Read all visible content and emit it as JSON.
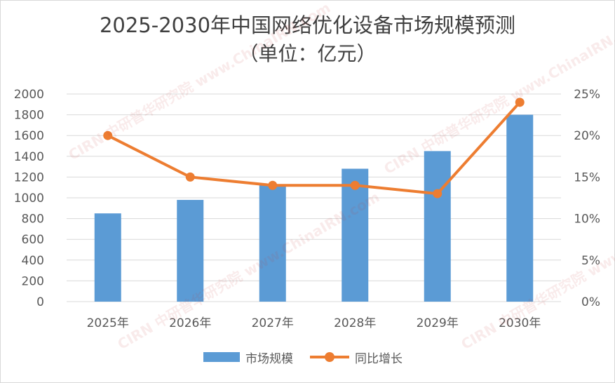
{
  "chart_data": {
    "type": "bar+line",
    "title": "2025-2030年中国网络优化设备市场规模预测",
    "subtitle": "（单位：亿元）",
    "categories": [
      "2025年",
      "2026年",
      "2027年",
      "2028年",
      "2029年",
      "2030年"
    ],
    "series": [
      {
        "name": "市场规模",
        "type": "bar",
        "axis": "left",
        "color": "#5b9bd5",
        "values": [
          850,
          980,
          1120,
          1280,
          1450,
          1800
        ]
      },
      {
        "name": "同比增长",
        "type": "line",
        "axis": "right",
        "color": "#ed7d31",
        "values": [
          20.0,
          15.0,
          14.0,
          14.0,
          13.0,
          24.0
        ]
      }
    ],
    "ylim_left": [
      0,
      2000
    ],
    "yticks_left": [
      "0",
      "200",
      "400",
      "600",
      "800",
      "1000",
      "1200",
      "1400",
      "1600",
      "1800",
      "2000"
    ],
    "ylim_right": [
      0,
      25
    ],
    "yticks_right": [
      "0%",
      "5%",
      "10%",
      "15%",
      "20%",
      "25%"
    ],
    "grid": true,
    "legend_position": "bottom"
  },
  "watermark": {
    "url": "www.ChinaIRN.com",
    "name": "中研普华研究院",
    "logo": "CIRN"
  }
}
